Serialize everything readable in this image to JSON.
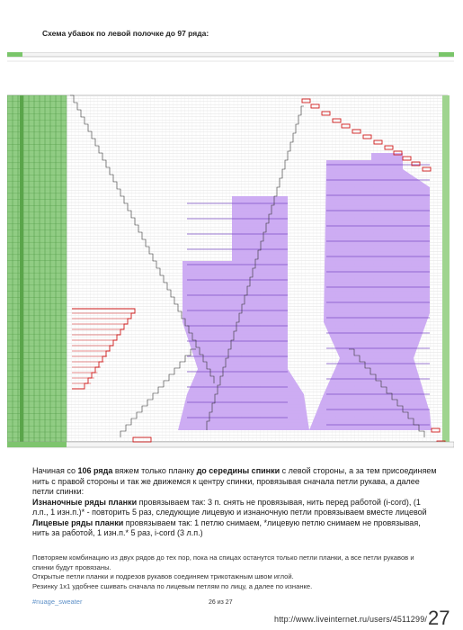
{
  "header": {
    "title": "Схема убавок по левой полочке до 97 ряда:"
  },
  "paragraph1": {
    "p1_a": "Начиная со ",
    "p1_b": "106 ряда",
    "p1_c": " вяжем только планку ",
    "p1_d": "до середины спинки",
    "p1_e": " с левой стороны, а за тем присоединяем нить с правой стороны и так же движемся к центру спинки, провязывая сначала петли рукава, а далее петли спинки:",
    "p2_a": "Изнаночные ряды планки",
    "p2_b": " провязываем так: 3 п. снять не провязывая, нить перед работой (i-cord), (1 л.п., 1 изн.п.)* - повторить 5 раз, следующие лицевую и изнаночную петли провязываем вместе лицевой",
    "p3_a": "Лицевые ряды планки",
    "p3_b": " провязываем так: 1 петлю снимаем, *лицевую петлю снимаем не провязывая, нить за работой, 1 изн.п.* 5 раз,  i-cord (3 л.п.)"
  },
  "paragraph2": {
    "l1": "Повторяем комбинацию из двух рядов до тех пор, пока на спицах останутся только петли планки, а все петли рукавов и спинки будут провязаны.",
    "l2": "Открытые петли планки и подрезов рукавов соединяем трикотажным швом иглой.",
    "l3": "Резинку 1х1 удобнее сшивать сначала по лицевым петлям по лицу, а далее по изнанке."
  },
  "footer": {
    "hashtag": "#nuage_sweater",
    "page": "26 из 27",
    "big_number": "27",
    "url": "http://www.liveinternet.ru/users/4511299/"
  },
  "colors": {
    "green": "#6fbf5f",
    "purple": "#c9a6f0",
    "red": "#d01c1c",
    "grid": "#9a9a9a"
  }
}
